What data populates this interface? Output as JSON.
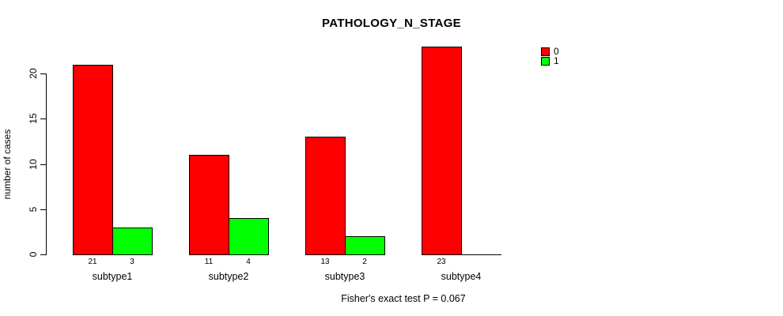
{
  "chart_data": {
    "type": "bar",
    "title": "PATHOLOGY_N_STAGE",
    "xlabel": "",
    "ylabel": "number of cases",
    "categories": [
      "subtype1",
      "subtype2",
      "subtype3",
      "subtype4"
    ],
    "series": [
      {
        "name": "0",
        "color": "#ff0000",
        "values": [
          21,
          11,
          13,
          23
        ]
      },
      {
        "name": "1",
        "color": "#00ff00",
        "values": [
          3,
          4,
          2,
          0
        ]
      }
    ],
    "bar_value_labels": [
      [
        "21",
        "3"
      ],
      [
        "11",
        "4"
      ],
      [
        "13",
        "2"
      ],
      [
        "23",
        null
      ]
    ],
    "ylim": [
      0,
      20
    ],
    "yticks": [
      0,
      5,
      10,
      15,
      20
    ],
    "grid": false,
    "legend_position": "right",
    "annotation": "Fisher's exact test P = 0.067"
  },
  "colors": {
    "series0": "#ff0000",
    "series1": "#00ff00",
    "axis": "#000000",
    "background": "#ffffff"
  }
}
